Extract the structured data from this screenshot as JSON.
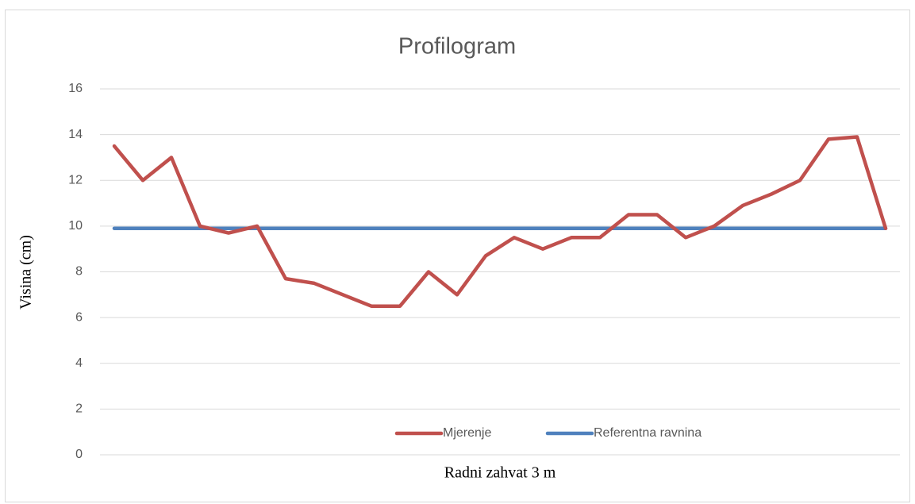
{
  "chart_data": {
    "type": "line",
    "title": "Profilogram",
    "xlabel": "Radni zahvat 3 m",
    "ylabel": "Visina (cm)",
    "categories": [
      null,
      null,
      null,
      null,
      null,
      null,
      null,
      null,
      null,
      null,
      null,
      null,
      null,
      null,
      null,
      null,
      null,
      null,
      null,
      null,
      null,
      null,
      null,
      null,
      null,
      null,
      null,
      null
    ],
    "series": [
      {
        "name": "Mjerenje",
        "color": "#c0504d",
        "values": [
          13.5,
          12,
          13,
          10,
          9.7,
          10,
          7.7,
          7.5,
          7,
          6.5,
          6.5,
          8,
          7,
          8.7,
          9.5,
          9,
          9.5,
          9.5,
          10.5,
          10.5,
          9.5,
          10,
          10.9,
          11.4,
          12,
          13.8,
          13.9,
          9.9
        ]
      },
      {
        "name": "Referentna ravnina",
        "color": "#4f81bd",
        "values": [
          9.9,
          9.9,
          9.9,
          9.9,
          9.9,
          9.9,
          9.9,
          9.9,
          9.9,
          9.9,
          9.9,
          9.9,
          9.9,
          9.9,
          9.9,
          9.9,
          9.9,
          9.9,
          9.9,
          9.9,
          9.9,
          9.9,
          9.9,
          9.9,
          9.9,
          9.9,
          9.9,
          9.9
        ]
      }
    ],
    "ylim": [
      0,
      16
    ],
    "yticks": [
      0,
      2,
      4,
      6,
      8,
      10,
      12,
      14,
      16
    ],
    "grid": true,
    "legend": "bottom"
  }
}
